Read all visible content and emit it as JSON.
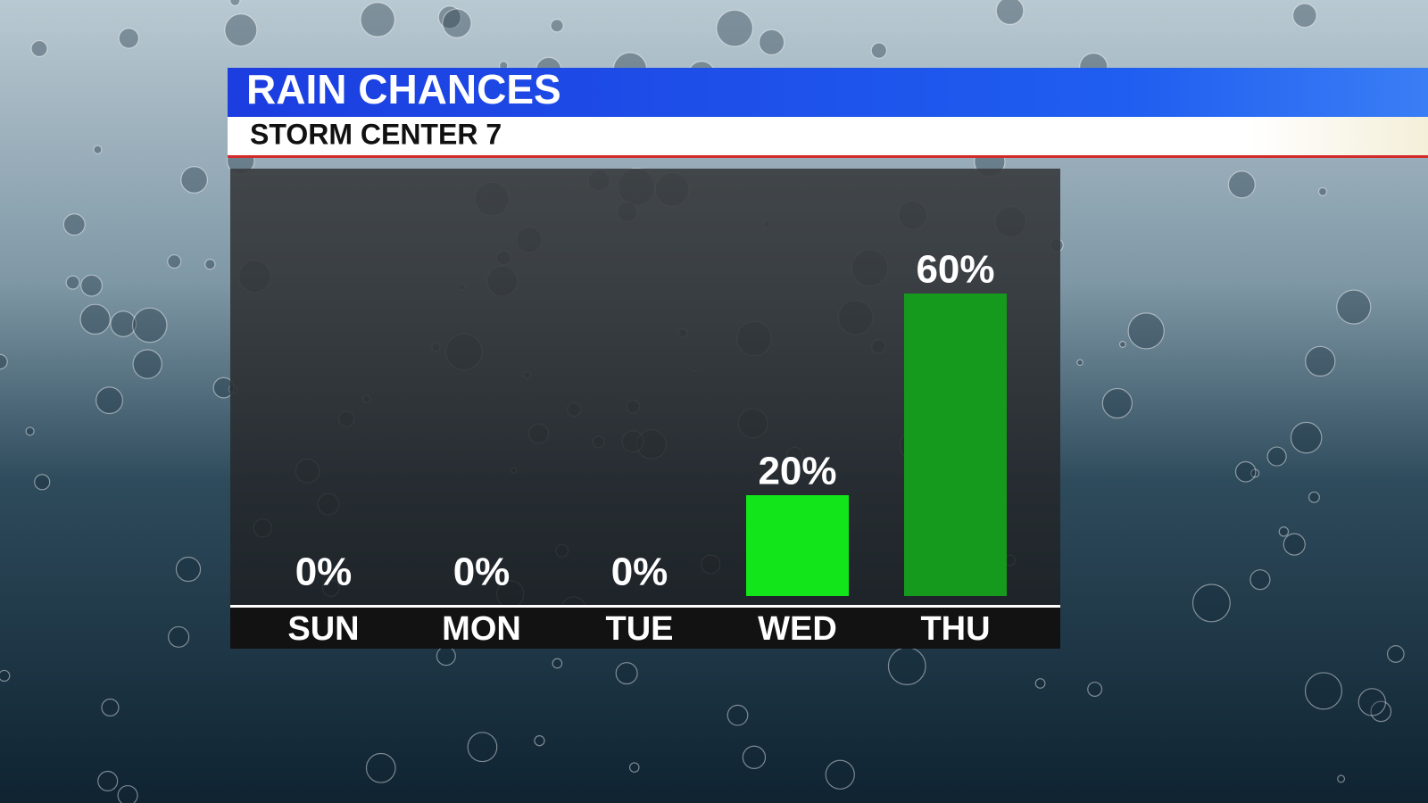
{
  "chart_data": {
    "type": "bar",
    "title": "RAIN CHANCES",
    "subtitle": "STORM CENTER 7",
    "categories": [
      "SUN",
      "MON",
      "TUE",
      "WED",
      "THU"
    ],
    "values": [
      0,
      0,
      0,
      20,
      60
    ],
    "value_labels": [
      "0%",
      "0%",
      "0%",
      "20%",
      "60%"
    ],
    "colors": [
      "#12e61a",
      "#12e61a",
      "#12e61a",
      "#12e61a",
      "#169a1e"
    ]
  }
}
